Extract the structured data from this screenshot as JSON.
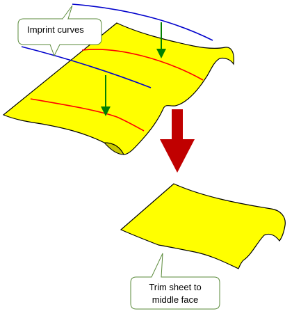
{
  "callouts": {
    "imprint": {
      "text": "Imprint curves"
    },
    "trim": {
      "line1": "Trim sheet to",
      "line2": "middle face"
    }
  },
  "colors": {
    "sheet_fill": "#ffff00",
    "sheet_outline": "#000000",
    "sheet_underside": "#c8c800",
    "imprint_curve": "#0000cc",
    "imprinted_edge": "#ff0000",
    "projection_arrow": "#008000",
    "result_arrow": "#c00000",
    "callout_border": "#5a8a3a",
    "callout_fill": "#ffffff"
  },
  "icons": {
    "projection_arrow": "down-arrow-icon",
    "result_arrow": "big-down-arrow-icon"
  }
}
